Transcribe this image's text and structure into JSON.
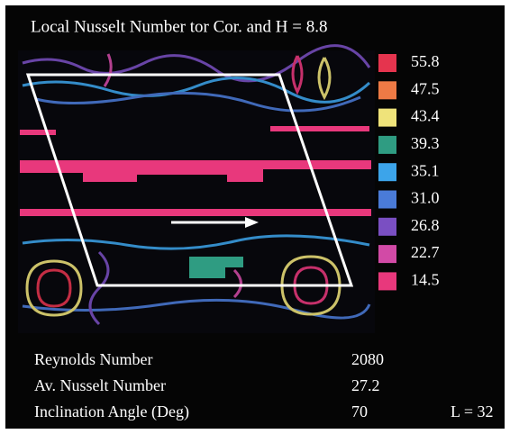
{
  "header": {
    "title": "Local Nusselt Number tor Cor. and H = 8.8"
  },
  "legend": {
    "items": [
      {
        "label": "55.8",
        "color": "#e5344e"
      },
      {
        "label": "47.5",
        "color": "#ee7a45"
      },
      {
        "label": "43.4",
        "color": "#efe37a"
      },
      {
        "label": "39.3",
        "color": "#2f9c82"
      },
      {
        "label": "35.1",
        "color": "#3ca4ea"
      },
      {
        "label": "31.0",
        "color": "#4a7bd8"
      },
      {
        "label": "26.8",
        "color": "#7a4fc2"
      },
      {
        "label": "22.7",
        "color": "#d24aa6"
      },
      {
        "label": "14.5",
        "color": "#e8387c"
      }
    ]
  },
  "stats": {
    "rows": [
      [
        "Reynolds Number",
        "2080"
      ],
      [
        "Av. Nusselt Number",
        "27.2"
      ],
      [
        "Inclination Angle (Deg)",
        "70"
      ]
    ],
    "note": "L = 32"
  }
}
